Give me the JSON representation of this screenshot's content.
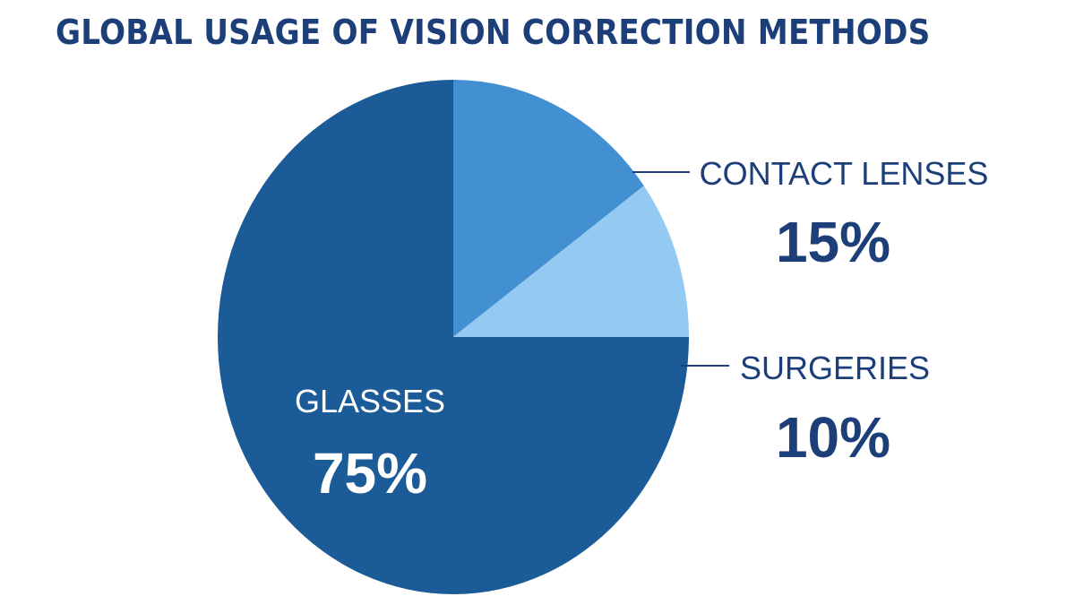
{
  "chart_data": {
    "type": "pie",
    "title": "GLOBAL USAGE OF VISION CORRECTION METHODS",
    "slices": [
      {
        "label": "GLASSES",
        "value": 75,
        "display": "75%",
        "color": "#1a5b98",
        "label_color": "#ffffff",
        "label_position": "inside"
      },
      {
        "label": "CONTACT LENSES",
        "value": 15,
        "display": "15%",
        "color": "#428fd1",
        "label_color": "#1c3f7a",
        "label_position": "outside-right"
      },
      {
        "label": "SURGERIES",
        "value": 10,
        "display": "10%",
        "color": "#94c9f1",
        "label_color": "#1c3f7a",
        "label_position": "outside-right"
      }
    ]
  }
}
